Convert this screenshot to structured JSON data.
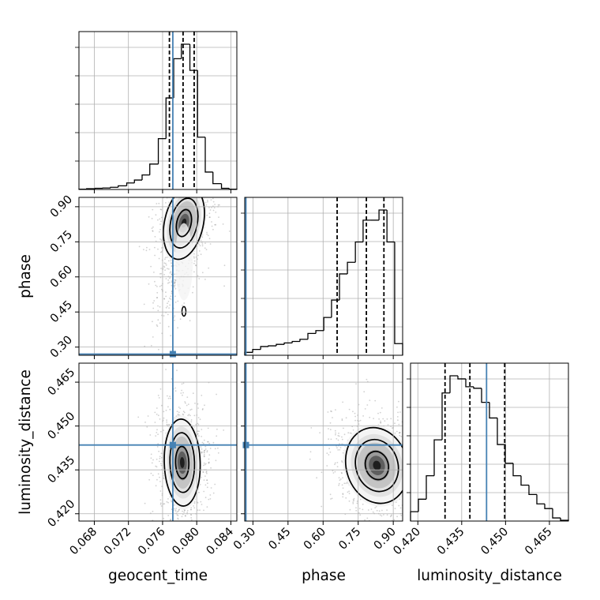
{
  "chart_data": {
    "type": "corner",
    "parameters": [
      "geocent_time",
      "phase",
      "luminosity_distance"
    ],
    "ranges": {
      "geocent_time": [
        0.0662,
        0.0847
      ],
      "phase": [
        0.265,
        0.94
      ],
      "luminosity_distance": [
        0.4175,
        0.4715
      ]
    },
    "ticks": {
      "geocent_time": [
        0.068,
        0.072,
        0.076,
        0.08,
        0.084
      ],
      "phase": [
        0.3,
        0.45,
        0.6,
        0.75,
        0.9
      ],
      "luminosity_distance": [
        0.42,
        0.435,
        0.45,
        0.465
      ]
    },
    "tick_labels": {
      "geocent_time": [
        "0.068",
        "0.072",
        "0.076",
        "0.080",
        "0.084"
      ],
      "phase": [
        "0.30",
        "0.45",
        "0.60",
        "0.75",
        "0.90"
      ],
      "luminosity_distance": [
        "0.420",
        "0.435",
        "0.450",
        "0.465"
      ]
    },
    "truths": {
      "geocent_time": 0.0772,
      "phase": 0.27,
      "luminosity_distance": 0.4435
    },
    "quantiles": {
      "geocent_time": [
        0.0768,
        0.0784,
        0.0797
      ],
      "phase": [
        0.66,
        0.785,
        0.86
      ],
      "luminosity_distance": [
        0.4293,
        0.4378,
        0.4497
      ]
    },
    "histograms": {
      "geocent_time": {
        "edges": [
          0.0662,
          0.0671,
          0.0681,
          0.069,
          0.0699,
          0.0708,
          0.0718,
          0.0727,
          0.0736,
          0.0745,
          0.0755,
          0.0764,
          0.0773,
          0.0782,
          0.0792,
          0.0801,
          0.081,
          0.0819,
          0.0829,
          0.0838,
          0.0847
        ],
        "counts": [
          0.002,
          0.005,
          0.008,
          0.01,
          0.015,
          0.025,
          0.045,
          0.065,
          0.1,
          0.175,
          0.35,
          0.63,
          0.9,
          1.0,
          0.82,
          0.36,
          0.12,
          0.04,
          0.008,
          0.002
        ]
      },
      "phase": {
        "edges": [
          0.265,
          0.299,
          0.333,
          0.366,
          0.4,
          0.434,
          0.468,
          0.501,
          0.535,
          0.569,
          0.603,
          0.636,
          0.67,
          0.704,
          0.738,
          0.771,
          0.805,
          0.839,
          0.873,
          0.906,
          0.94
        ],
        "counts": [
          0.02,
          0.04,
          0.06,
          0.065,
          0.075,
          0.085,
          0.095,
          0.11,
          0.15,
          0.17,
          0.26,
          0.38,
          0.56,
          0.64,
          0.78,
          0.93,
          0.93,
          1.0,
          0.78,
          0.08
        ]
      },
      "luminosity_distance": {
        "edges": [
          0.4175,
          0.4202,
          0.4229,
          0.4256,
          0.4283,
          0.431,
          0.4337,
          0.4364,
          0.4391,
          0.4418,
          0.4445,
          0.4472,
          0.4499,
          0.4526,
          0.4553,
          0.458,
          0.4607,
          0.4634,
          0.4661,
          0.4688,
          0.4715
        ],
        "counts": [
          0.06,
          0.14,
          0.29,
          0.52,
          0.82,
          0.93,
          0.91,
          0.86,
          0.85,
          0.76,
          0.66,
          0.49,
          0.37,
          0.29,
          0.23,
          0.17,
          0.11,
          0.08,
          0.02,
          0.005
        ]
      }
    },
    "joint_modes": {
      "geocent_time|phase": {
        "center": [
          0.0785,
          0.83
        ],
        "spread": [
          0.0013,
          0.09
        ],
        "corr": -0.35,
        "tail": [
          0.0784,
          0.5
        ]
      },
      "geocent_time|luminosity_distance": {
        "center": [
          0.0783,
          0.4375
        ],
        "spread": [
          0.0012,
          0.0085
        ],
        "corr": 0.05
      },
      "phase|luminosity_distance": {
        "center": [
          0.83,
          0.4365
        ],
        "spread": [
          0.075,
          0.0075
        ],
        "corr": 0.45
      }
    },
    "grid": true,
    "truth_color": "#4682b4",
    "line_color": "#000000"
  }
}
